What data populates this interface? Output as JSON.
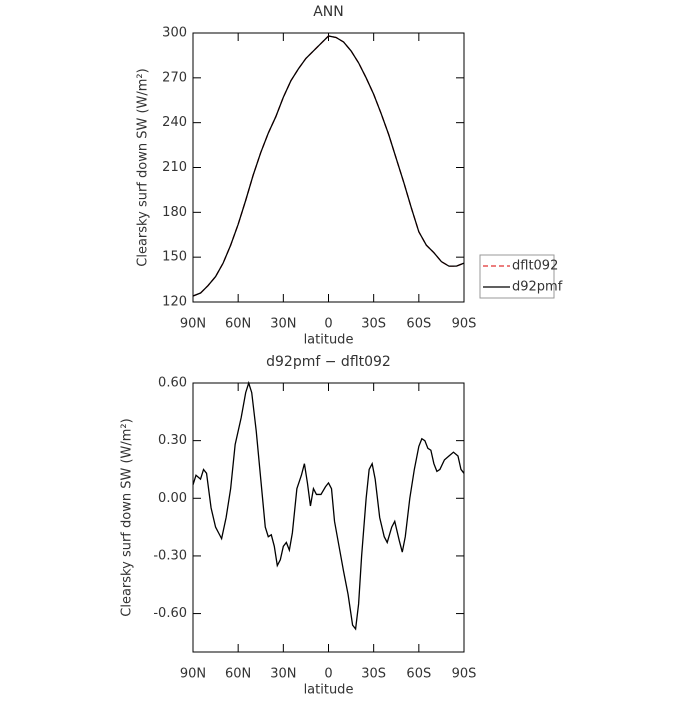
{
  "chart_data": [
    {
      "type": "line",
      "title": "ANN",
      "xlabel": "latitude",
      "ylabel": "Clearsky surf down SW (W/m²)",
      "x": [
        90,
        85,
        80,
        75,
        70,
        65,
        60,
        55,
        50,
        45,
        40,
        35,
        30,
        25,
        20,
        15,
        10,
        5,
        0,
        -5,
        -10,
        -15,
        -20,
        -25,
        -30,
        -35,
        -40,
        -45,
        -50,
        -55,
        -60,
        -65,
        -70,
        -75,
        -80,
        -85,
        -90
      ],
      "series": [
        {
          "name": "dflt092",
          "color": "#e03030",
          "dash": true,
          "values": [
            124,
            126,
            131,
            137,
            146,
            158,
            172,
            188,
            205,
            220,
            233,
            244,
            257,
            268,
            276,
            283,
            288,
            293,
            298,
            297,
            294,
            288,
            280,
            270,
            259,
            246,
            232,
            216,
            200,
            183,
            167,
            158,
            153,
            147,
            144,
            144,
            146
          ]
        },
        {
          "name": "d92pmf",
          "color": "#000000",
          "dash": false,
          "values": [
            124,
            126,
            131,
            137,
            146,
            158,
            172,
            188,
            205,
            220,
            233,
            244,
            257,
            268,
            276,
            283,
            288,
            293,
            298,
            297,
            294,
            288,
            280,
            270,
            259,
            246,
            232,
            216,
            200,
            183,
            167,
            158,
            153,
            147,
            144,
            144,
            146
          ]
        }
      ],
      "xlim": [
        90,
        -90
      ],
      "xticks": [
        {
          "value": 90,
          "label": "90N"
        },
        {
          "value": 60,
          "label": "60N"
        },
        {
          "value": 30,
          "label": "30N"
        },
        0,
        {
          "value": -30,
          "label": "30S"
        },
        {
          "value": -60,
          "label": "60S"
        },
        {
          "value": -90,
          "label": "90S"
        }
      ],
      "ylim": [
        120,
        300
      ],
      "yticks": [
        120,
        150,
        180,
        210,
        240,
        270,
        300
      ],
      "legend": "right"
    },
    {
      "type": "line",
      "title": "d92pmf − dflt092",
      "xlabel": "latitude",
      "ylabel": "Clearsky surf down SW (W/m²)",
      "x": [
        90,
        88,
        85,
        83,
        81,
        78,
        75,
        73,
        71,
        68,
        65,
        62,
        58,
        55,
        53,
        51,
        48,
        45,
        42,
        40,
        38,
        36,
        34,
        32,
        30,
        28,
        26,
        24,
        21,
        18,
        16,
        14,
        12,
        10,
        8,
        5,
        2,
        0,
        -2,
        -4,
        -7,
        -10,
        -13,
        -16,
        -18,
        -20,
        -22,
        -25,
        -27,
        -29,
        -31,
        -34,
        -37,
        -39,
        -42,
        -44,
        -47,
        -49,
        -51,
        -54,
        -57,
        -60,
        -62,
        -64,
        -66,
        -68,
        -70,
        -72,
        -74,
        -77,
        -80,
        -83,
        -86,
        -88,
        -90
      ],
      "series": [
        {
          "color": "#000000",
          "dash": false,
          "values": [
            0.07,
            0.12,
            0.1,
            0.15,
            0.13,
            -0.05,
            -0.15,
            -0.18,
            -0.21,
            -0.1,
            0.05,
            0.28,
            0.42,
            0.55,
            0.6,
            0.55,
            0.35,
            0.1,
            -0.15,
            -0.2,
            -0.19,
            -0.25,
            -0.35,
            -0.32,
            -0.25,
            -0.23,
            -0.27,
            -0.18,
            0.05,
            0.12,
            0.18,
            0.08,
            -0.04,
            0.05,
            0.02,
            0.02,
            0.06,
            0.08,
            0.05,
            -0.12,
            -0.25,
            -0.38,
            -0.5,
            -0.66,
            -0.68,
            -0.55,
            -0.3,
            0.0,
            0.15,
            0.18,
            0.1,
            -0.1,
            -0.2,
            -0.23,
            -0.15,
            -0.12,
            -0.22,
            -0.28,
            -0.2,
            0.0,
            0.15,
            0.27,
            0.31,
            0.3,
            0.26,
            0.25,
            0.18,
            0.14,
            0.15,
            0.2,
            0.22,
            0.24,
            0.22,
            0.15,
            0.13
          ]
        }
      ],
      "xlim": [
        90,
        -90
      ],
      "xticks": [
        {
          "value": 90,
          "label": "90N"
        },
        {
          "value": 60,
          "label": "60N"
        },
        {
          "value": 30,
          "label": "30N"
        },
        0,
        {
          "value": -30,
          "label": "30S"
        },
        {
          "value": -60,
          "label": "60S"
        },
        {
          "value": -90,
          "label": "90S"
        }
      ],
      "ylim": [
        -0.8,
        0.6
      ],
      "yticks": [
        {
          "value": -0.6,
          "label": "-0.60"
        },
        {
          "value": -0.3,
          "label": "-0.30"
        },
        {
          "value": 0,
          "label": "0.00"
        },
        {
          "value": 0.3,
          "label": "0.30"
        },
        {
          "value": 0.6,
          "label": "0.60"
        }
      ]
    }
  ]
}
